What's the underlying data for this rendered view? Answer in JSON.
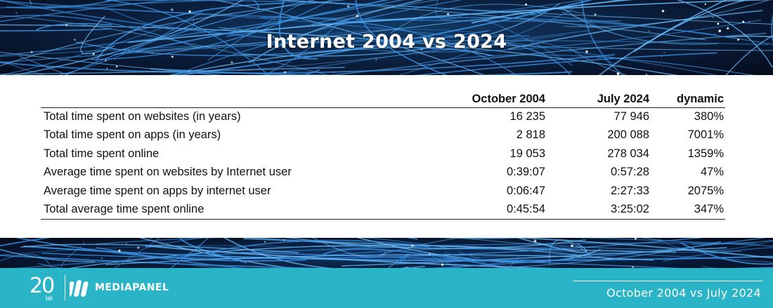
{
  "header": {
    "title": "Internet 2004 vs 2024"
  },
  "table": {
    "columns": [
      "",
      "October 2004",
      "July 2024",
      "dynamic"
    ],
    "rows": [
      [
        "Total time spent on websites (in years)",
        "16 235",
        "77 946",
        "380%"
      ],
      [
        "Total time spent on apps (in years)",
        "2 818",
        "200 088",
        "7001%"
      ],
      [
        "Total time spent online",
        "19 053",
        "278 034",
        "1359%"
      ],
      [
        "Average time spent on websites by Internet user",
        "0:39:07",
        "0:57:28",
        "47%"
      ],
      [
        "Average time spent on apps by internet user",
        "0:06:47",
        "2:27:33",
        "2075%"
      ],
      [
        "Total average time spent online",
        "0:45:54",
        "3:25:02",
        "347%"
      ]
    ]
  },
  "footer": {
    "logo_number": "20",
    "logo_sub": "lat",
    "brand": "MEDIAPANEL",
    "caption": "October 2004 vs July 2024",
    "background_color": "#29b4c7"
  }
}
